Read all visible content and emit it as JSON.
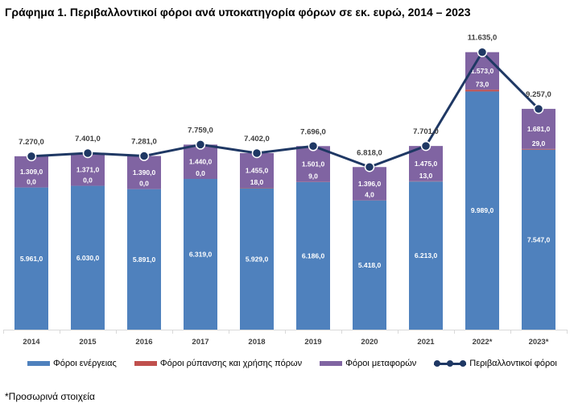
{
  "title": "Γράφημα 1. Περιβαλλοντικοί φόροι ανά υποκατηγορία φόρων σε εκ. ευρώ, 2014 – 2023",
  "footnote": "*Προσωρινά στοιχεία",
  "legend": [
    {
      "label": "Φόροι ενέργειας",
      "color": "#4f81bd",
      "kind": "bar"
    },
    {
      "label": "Φόροι ρύπανσης και χρήσης πόρων",
      "color": "#c0504d",
      "kind": "bar"
    },
    {
      "label": "Φόροι μεταφορών",
      "color": "#8064a2",
      "kind": "bar"
    },
    {
      "label": "Περιβαλλοντικοί φόροι",
      "color": "#1f3864",
      "kind": "line"
    }
  ],
  "chart_data": {
    "type": "bar",
    "stacked": true,
    "categories": [
      "2014",
      "2015",
      "2016",
      "2017",
      "2018",
      "2019",
      "2020",
      "2021",
      "2022*",
      "2023*"
    ],
    "series": [
      {
        "name": "Φόροι ενέργειας",
        "color": "#4f81bd",
        "values": [
          5961.0,
          6030.0,
          5891.0,
          6319.0,
          5929.0,
          6186.0,
          5418.0,
          6213.0,
          9989.0,
          7547.0
        ],
        "labels": [
          "5.961,0",
          "6.030,0",
          "5.891,0",
          "6.319,0",
          "5.929,0",
          "6.186,0",
          "5.418,0",
          "6.213,0",
          "9.989,0",
          "7.547,0"
        ]
      },
      {
        "name": "Φόροι ρύπανσης και χρήσης πόρων",
        "color": "#c0504d",
        "values": [
          0.0,
          0.0,
          0.0,
          0.0,
          18.0,
          9.0,
          4.0,
          13.0,
          73.0,
          29.0
        ],
        "labels": [
          "0,0",
          "0,0",
          "0,0",
          "0,0",
          "18,0",
          "9,0",
          "4,0",
          "13,0",
          "73,0",
          "29,0"
        ]
      },
      {
        "name": "Φόροι μεταφορών",
        "color": "#8064a2",
        "values": [
          1309.0,
          1371.0,
          1390.0,
          1440.0,
          1455.0,
          1501.0,
          1396.0,
          1475.0,
          1573.0,
          1681.0
        ],
        "labels": [
          "1.309,0",
          "1.371,0",
          "1.390,0",
          "1.440,0",
          "1.455,0",
          "1.501,0",
          "1.396,0",
          "1.475,0",
          "1.573,0",
          "1.681,0"
        ]
      }
    ],
    "line": {
      "name": "Περιβαλλοντικοί φόροι",
      "color": "#1f3864",
      "values": [
        7270.0,
        7401.0,
        7281.0,
        7759.0,
        7402.0,
        7696.0,
        6818.0,
        7701.0,
        11635.0,
        9257.0
      ],
      "labels": [
        "7.270,0",
        "7.401,0",
        "7.281,0",
        "7.759,0",
        "7.402,0",
        "7.696,0",
        "6.818,0",
        "7.701,0",
        "11.635,0",
        "9.257,0"
      ]
    },
    "ylim": [
      0,
      12200
    ],
    "grid": false,
    "legend_position": "bottom"
  }
}
